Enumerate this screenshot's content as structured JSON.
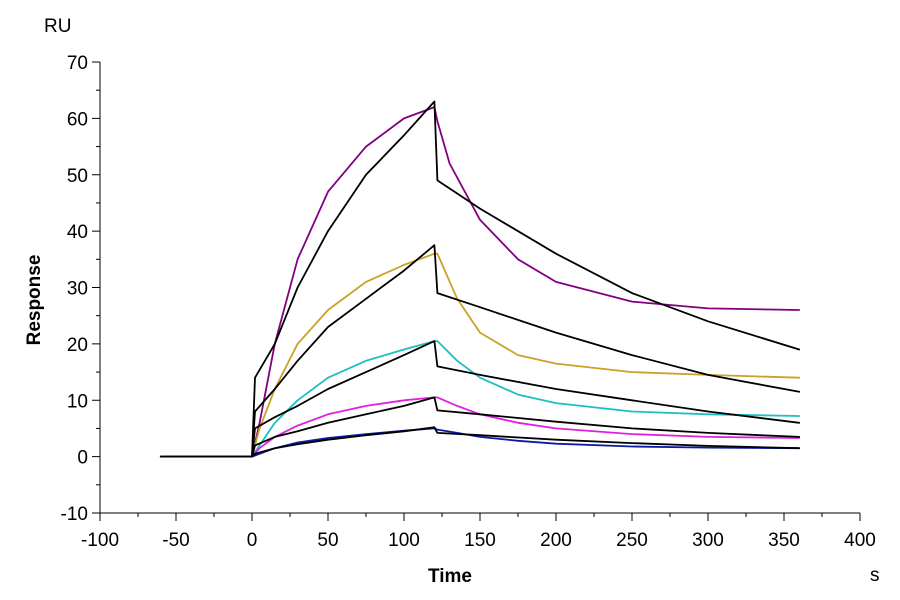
{
  "chart_data": {
    "type": "line",
    "xlabel": "Time",
    "ylabel": "Response",
    "x_unit": "s",
    "y_unit": "RU",
    "xlim": [
      -100,
      400
    ],
    "ylim": [
      -10,
      70
    ],
    "x_ticks": [
      -100,
      -50,
      0,
      50,
      100,
      150,
      200,
      250,
      300,
      350,
      400
    ],
    "y_ticks": [
      -10,
      0,
      10,
      20,
      30,
      40,
      50,
      60,
      70
    ],
    "grid": false,
    "legend": "none",
    "series": [
      {
        "color": "#800080",
        "x": [
          -60,
          -10,
          0,
          5,
          15,
          30,
          50,
          75,
          100,
          120,
          122,
          130,
          150,
          175,
          200,
          250,
          300,
          360
        ],
        "y": [
          0,
          0,
          0,
          6,
          20,
          35,
          47,
          55,
          60,
          62,
          59.5,
          52,
          42,
          35,
          31,
          27.5,
          26.3,
          26
        ]
      },
      {
        "color": "#000000",
        "x": [
          -60,
          -10,
          0,
          2,
          15,
          30,
          50,
          75,
          100,
          120,
          122,
          150,
          200,
          250,
          300,
          360
        ],
        "y": [
          0,
          0,
          0,
          14,
          20,
          30,
          40,
          50,
          57,
          63,
          49,
          44,
          36,
          29,
          24,
          19
        ]
      },
      {
        "color": "#c9a227",
        "x": [
          -60,
          -10,
          0,
          5,
          15,
          30,
          50,
          75,
          100,
          120,
          122,
          135,
          150,
          175,
          200,
          250,
          300,
          360
        ],
        "y": [
          0,
          0,
          0,
          5,
          12,
          20,
          26,
          31,
          34,
          36,
          36,
          28,
          22,
          18,
          16.5,
          15,
          14.5,
          14
        ]
      },
      {
        "color": "#000000",
        "x": [
          -60,
          -10,
          0,
          2,
          15,
          30,
          50,
          75,
          100,
          120,
          122,
          150,
          200,
          250,
          300,
          360
        ],
        "y": [
          0,
          0,
          0,
          8,
          12,
          17,
          23,
          28,
          33,
          37.5,
          29,
          26.5,
          22,
          18,
          14.5,
          11.5
        ]
      },
      {
        "color": "#1ebfc0",
        "x": [
          -60,
          -10,
          0,
          5,
          15,
          30,
          50,
          75,
          100,
          120,
          122,
          135,
          150,
          175,
          200,
          250,
          300,
          360
        ],
        "y": [
          0,
          0,
          0,
          2,
          6,
          10,
          14,
          17,
          19,
          20.5,
          20.5,
          17,
          14,
          11,
          9.5,
          8,
          7.5,
          7.2
        ]
      },
      {
        "color": "#000000",
        "x": [
          -60,
          -10,
          0,
          2,
          15,
          30,
          50,
          75,
          100,
          120,
          122,
          150,
          200,
          250,
          300,
          360
        ],
        "y": [
          0,
          0,
          0,
          5,
          7,
          9,
          12,
          15,
          18,
          20.5,
          16,
          14.5,
          12,
          10,
          8,
          6
        ]
      },
      {
        "color": "#e020e0",
        "x": [
          -60,
          -10,
          0,
          5,
          15,
          30,
          50,
          75,
          100,
          120,
          122,
          135,
          150,
          175,
          200,
          250,
          300,
          360
        ],
        "y": [
          0,
          0,
          0,
          1.5,
          3.5,
          5.5,
          7.5,
          9,
          10,
          10.5,
          10.5,
          9,
          7.5,
          6,
          5,
          4,
          3.5,
          3.3
        ]
      },
      {
        "color": "#000000",
        "x": [
          -60,
          -10,
          0,
          2,
          15,
          30,
          50,
          75,
          100,
          120,
          122,
          150,
          200,
          250,
          300,
          360
        ],
        "y": [
          0,
          0,
          0,
          2,
          3.5,
          4.5,
          6,
          7.5,
          9,
          10.5,
          8.2,
          7.5,
          6.2,
          5,
          4.2,
          3.5
        ]
      },
      {
        "color": "#0a1aa8",
        "x": [
          -60,
          -10,
          0,
          5,
          15,
          30,
          50,
          75,
          100,
          120,
          122,
          135,
          150,
          175,
          200,
          250,
          300,
          360
        ],
        "y": [
          0,
          0,
          0,
          0.5,
          1.5,
          2.5,
          3.3,
          4,
          4.6,
          5,
          4.8,
          4.2,
          3.5,
          2.8,
          2.3,
          1.8,
          1.6,
          1.5
        ]
      },
      {
        "color": "#000000",
        "x": [
          -60,
          -10,
          0,
          2,
          15,
          30,
          50,
          75,
          100,
          120,
          122,
          150,
          200,
          250,
          300,
          360
        ],
        "y": [
          0,
          0,
          0,
          0.5,
          1.5,
          2.2,
          3,
          3.8,
          4.5,
          5.2,
          4.2,
          3.8,
          3,
          2.4,
          1.9,
          1.5
        ]
      }
    ]
  }
}
